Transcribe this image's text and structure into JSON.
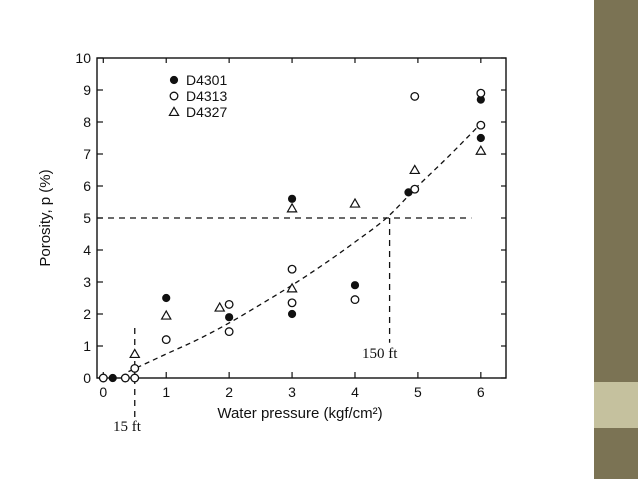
{
  "colors": {
    "sidebar_dark": "#7b7354",
    "sidebar_light": "#c5c19e",
    "ink": "#111111"
  },
  "chart_data": {
    "type": "scatter",
    "title": "",
    "xlabel": "Water pressure (kgf/cm²)",
    "ylabel": "Porosity, p (%)",
    "xlim": [
      -0.1,
      6.4
    ],
    "ylim": [
      0,
      10
    ],
    "xticks": [
      0,
      1,
      2,
      3,
      4,
      5,
      6
    ],
    "yticks": [
      0,
      1,
      2,
      3,
      4,
      5,
      6,
      7,
      8,
      9,
      10
    ],
    "grid": false,
    "legend_position": "top-left",
    "series": [
      {
        "name": "D4301",
        "marker": "filled-circle",
        "points": [
          [
            0.15,
            0
          ],
          [
            1.0,
            2.5
          ],
          [
            2.0,
            1.9
          ],
          [
            3.0,
            5.6
          ],
          [
            3.0,
            2.0
          ],
          [
            4.0,
            2.9
          ],
          [
            4.85,
            5.8
          ],
          [
            6.0,
            8.7
          ],
          [
            6.0,
            7.5
          ]
        ]
      },
      {
        "name": "D4313",
        "marker": "open-circle",
        "points": [
          [
            0.0,
            0
          ],
          [
            0.35,
            0
          ],
          [
            0.5,
            0
          ],
          [
            0.5,
            0.3
          ],
          [
            1.0,
            1.2
          ],
          [
            2.0,
            2.3
          ],
          [
            2.0,
            1.45
          ],
          [
            3.0,
            3.4
          ],
          [
            3.0,
            2.35
          ],
          [
            4.0,
            2.45
          ],
          [
            4.95,
            5.9
          ],
          [
            4.95,
            8.8
          ],
          [
            6.0,
            8.9
          ],
          [
            6.0,
            7.9
          ]
        ]
      },
      {
        "name": "D4327",
        "marker": "open-triangle",
        "points": [
          [
            0.5,
            0.75
          ],
          [
            1.0,
            1.95
          ],
          [
            1.85,
            2.2
          ],
          [
            3.0,
            5.3
          ],
          [
            3.0,
            2.8
          ],
          [
            4.0,
            5.45
          ],
          [
            4.95,
            6.5
          ],
          [
            6.0,
            7.1
          ]
        ]
      }
    ],
    "trend_curve": [
      [
        0.4,
        0.2
      ],
      [
        1.0,
        0.75
      ],
      [
        1.5,
        1.2
      ],
      [
        2.0,
        1.72
      ],
      [
        2.5,
        2.3
      ],
      [
        3.0,
        2.9
      ],
      [
        3.5,
        3.55
      ],
      [
        4.0,
        4.25
      ],
      [
        4.5,
        5.0
      ],
      [
        5.0,
        6.0
      ],
      [
        5.5,
        6.95
      ],
      [
        6.0,
        7.95
      ]
    ],
    "horizontal_reference": {
      "y": 5,
      "x_from": -0.1,
      "x_to": 5.85
    },
    "vertical_reference_lines": [
      {
        "x": 0.5,
        "y_from": 0,
        "y_to": 1.7,
        "label": "15 ft"
      },
      {
        "x": 4.55,
        "y_from": 5,
        "y_to": 1.1,
        "label": "150 ft"
      }
    ]
  }
}
